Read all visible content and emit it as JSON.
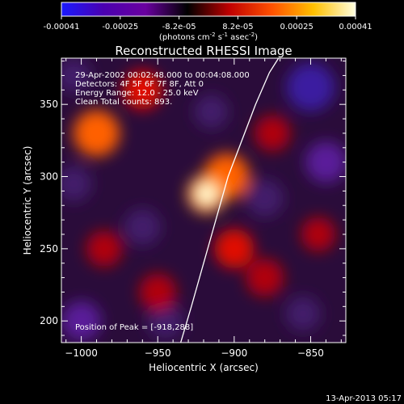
{
  "colorbar": {
    "ticks": [
      "-0.00041",
      "-0.00025",
      "-8.2e-05",
      "8.2e-05",
      "0.00025",
      "0.00041"
    ],
    "unit_main": "(photons cm",
    "unit_exp1": "-2",
    "unit_mid": " s",
    "unit_exp2": "-1",
    "unit_end": " asec",
    "unit_exp3": "-2",
    "unit_close": ")",
    "colors": [
      "#1a1aff",
      "#4a00b0",
      "#6a00a0",
      "#000000",
      "#c00000",
      "#ff5000",
      "#ffc000",
      "#ffffe0"
    ]
  },
  "chart_data": {
    "type": "heatmap",
    "title": "Reconstructed RHESSI Image",
    "xlabel": "Heliocentric X (arcsec)",
    "ylabel": "Heliocentric Y (arcsec)",
    "xlim": [
      -1013,
      -827
    ],
    "ylim": [
      185,
      382
    ],
    "x_ticks": [
      -1000,
      -950,
      -900,
      -850
    ],
    "y_ticks": [
      200,
      250,
      300,
      350
    ],
    "x_tick_labels": [
      "−1000",
      "−950",
      "−900",
      "−850"
    ],
    "y_tick_labels": [
      "200",
      "250",
      "300",
      "350"
    ],
    "info_lines": [
      "29-Apr-2002 00:02:48.000 to 00:04:08.000",
      "Detectors: 4F 5F 6F 7F 8F, Att 0",
      "Energy Range: 12.0 - 25.0 keV",
      "Clean    Total counts: 893."
    ],
    "peak_label": "Position of Peak = [-918,288]",
    "peak": {
      "x": -918,
      "y": 288
    },
    "limb_curve": [
      [
        -935,
        185
      ],
      [
        -928,
        210
      ],
      [
        -920,
        240
      ],
      [
        -912,
        270
      ],
      [
        -904,
        300
      ],
      [
        -895,
        325
      ],
      [
        -886,
        350
      ],
      [
        -877,
        372
      ],
      [
        -871,
        382
      ]
    ],
    "sources": [
      {
        "x": -918,
        "y": 288,
        "value": 0.00041
      },
      {
        "x": -905,
        "y": 300,
        "value": 0.0002
      },
      {
        "x": -990,
        "y": 330,
        "value": 0.0002
      },
      {
        "x": -960,
        "y": 360,
        "value": 0.00012
      },
      {
        "x": -900,
        "y": 250,
        "value": 0.00012
      },
      {
        "x": -880,
        "y": 230,
        "value": 0.0001
      },
      {
        "x": -950,
        "y": 220,
        "value": 9e-05
      },
      {
        "x": -985,
        "y": 250,
        "value": 8e-05
      },
      {
        "x": -875,
        "y": 330,
        "value": 8e-05
      },
      {
        "x": -845,
        "y": 260,
        "value": 6e-05
      },
      {
        "x": -840,
        "y": 310,
        "value": -0.00014
      },
      {
        "x": -850,
        "y": 362,
        "value": -0.00022
      },
      {
        "x": -880,
        "y": 285,
        "value": -0.0001
      },
      {
        "x": -1000,
        "y": 200,
        "value": -0.00012
      },
      {
        "x": -960,
        "y": 265,
        "value": -9e-05
      },
      {
        "x": -945,
        "y": 200,
        "value": -8e-05
      },
      {
        "x": -1005,
        "y": 295,
        "value": -8e-05
      },
      {
        "x": -915,
        "y": 345,
        "value": -6e-05
      },
      {
        "x": -855,
        "y": 205,
        "value": -7e-05
      },
      {
        "x": -1005,
        "y": 370,
        "value": -6e-05
      }
    ]
  },
  "footer": {
    "timestamp": "13-Apr-2013 05:17"
  }
}
